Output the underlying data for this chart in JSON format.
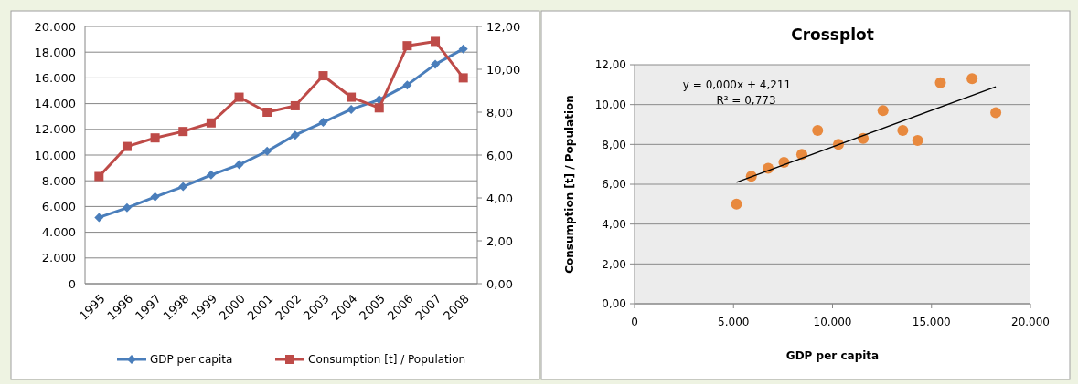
{
  "chart_data": [
    {
      "type": "line",
      "categories": [
        "1995",
        "1996",
        "1997",
        "1998",
        "1999",
        "2000",
        "2001",
        "2002",
        "2003",
        "2004",
        "2005",
        "2006",
        "2007",
        "2008"
      ],
      "series": [
        {
          "name": "GDP per capita",
          "color": "#4a7ebb",
          "marker": "diamond",
          "values": [
            5150,
            5900,
            6750,
            7550,
            8450,
            9250,
            10300,
            11550,
            12550,
            13550,
            14300,
            15450,
            17050,
            18250
          ]
        },
        {
          "name": "Consumption  [t] / Population",
          "color": "#be4b48",
          "marker": "square",
          "axis": "y2",
          "values": [
            5.0,
            6.4,
            6.8,
            7.1,
            7.5,
            8.7,
            8.0,
            8.3,
            9.7,
            8.7,
            8.2,
            11.1,
            11.3,
            9.6
          ]
        }
      ],
      "ylim": [
        0,
        20000
      ],
      "yticks": [
        0,
        {
          "value": 2000,
          "label": "2.000"
        },
        {
          "value": 4000,
          "label": "4.000"
        },
        {
          "value": 6000,
          "label": "6.000"
        },
        {
          "value": 8000,
          "label": "8.000"
        },
        {
          "value": 10000,
          "label": "10.000"
        },
        {
          "value": 12000,
          "label": "12.000"
        },
        {
          "value": 14000,
          "label": "14.000"
        },
        {
          "value": 16000,
          "label": "16.000"
        },
        {
          "value": 18000,
          "label": "18.000"
        },
        {
          "value": 20000,
          "label": "20.000"
        }
      ],
      "y2lim": [
        0,
        12
      ],
      "y2ticks": [
        {
          "value": 0,
          "label": "0,00"
        },
        {
          "value": 2,
          "label": "2,00"
        },
        {
          "value": 4,
          "label": "4,00"
        },
        {
          "value": 6,
          "label": "6,00"
        },
        {
          "value": 8,
          "label": "8,00"
        },
        {
          "value": 10,
          "label": "10,00"
        },
        {
          "value": 12,
          "label": "12,00"
        }
      ],
      "grid": "y",
      "legend": "bottom"
    },
    {
      "type": "scatter",
      "title": "Crossplot",
      "xlabel": "GDP per capita",
      "ylabel": "Consumption [t] / Population",
      "series": [
        {
          "type": "scatter",
          "color": "#e8893e",
          "marker": "circle",
          "x": [
            5150,
            5900,
            6750,
            7550,
            8450,
            9250,
            10300,
            11550,
            12550,
            13550,
            14300,
            15450,
            17050,
            18250
          ],
          "values": [
            5.0,
            6.4,
            6.8,
            7.1,
            7.5,
            8.7,
            8.0,
            8.3,
            9.7,
            8.7,
            8.2,
            11.1,
            11.3,
            9.6
          ]
        },
        {
          "type": "line",
          "color": "#000000",
          "x": [
            5150,
            18250
          ],
          "values": [
            6.1,
            10.9
          ]
        }
      ],
      "annotations": [
        "y = 0,000x + 4,211",
        "R² = 0,773"
      ],
      "xlim": [
        0,
        20000
      ],
      "xticks": [
        0,
        {
          "value": 5000,
          "label": "5.000"
        },
        {
          "value": 10000,
          "label": "10.000"
        },
        {
          "value": 15000,
          "label": "15.000"
        },
        {
          "value": 20000,
          "label": "20.000"
        }
      ],
      "ylim": [
        0,
        12
      ],
      "yticks": [
        {
          "value": 0,
          "label": "0,00"
        },
        {
          "value": 2,
          "label": "2,00"
        },
        {
          "value": 4,
          "label": "4,00"
        },
        {
          "value": 6,
          "label": "6,00"
        },
        {
          "value": 8,
          "label": "8,00"
        },
        {
          "value": 10,
          "label": "10,00"
        },
        {
          "value": 12,
          "label": "12,00"
        }
      ],
      "grid": "y"
    }
  ]
}
